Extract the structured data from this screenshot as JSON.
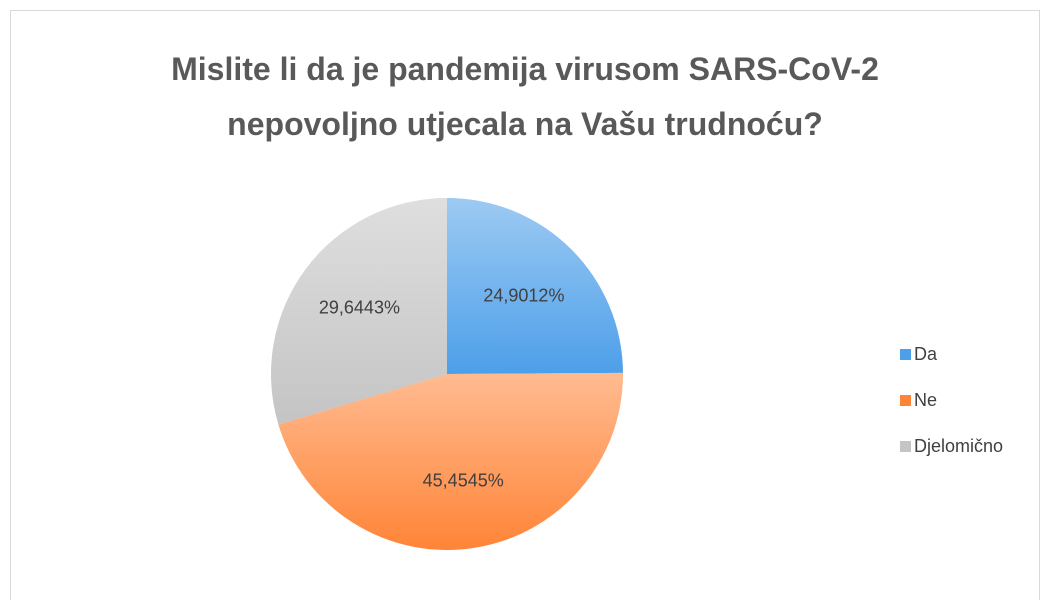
{
  "chart_data": {
    "type": "pie",
    "title": "Mislite li da je pandemija virusom SARS-CoV-2 nepovoljno utjecala na Vašu trudnoću?",
    "categories": [
      "Da",
      "Ne",
      "Djelomično"
    ],
    "values": [
      24.9012,
      45.4545,
      29.6443
    ],
    "value_labels": [
      "24,9012%",
      "45,4545%",
      "29,6443%"
    ],
    "colors": [
      "#4d9fe9",
      "#ff8437",
      "#c4c4c4"
    ],
    "legend": "right"
  }
}
